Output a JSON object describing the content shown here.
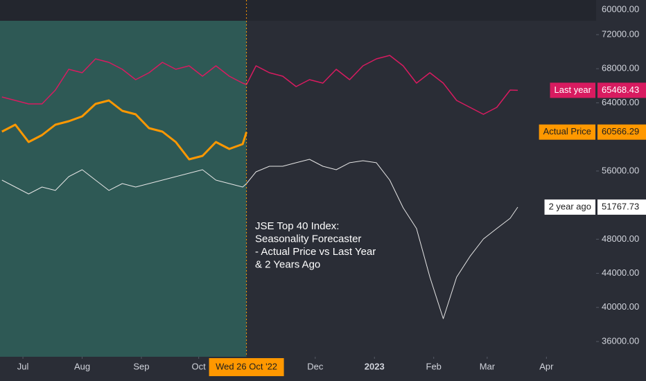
{
  "chart_data": {
    "type": "line",
    "annotation": [
      "JSE Top 40 Index:",
      "Seasonality Forecaster",
      "- Actual Price vs Last Year",
      "& 2 Years Ago"
    ],
    "scale_label": "60000.00",
    "crosshair": {
      "value": "2022-10-26",
      "label": "Wed 26 Oct '22"
    },
    "x": [
      "2022-06-20",
      "2022-06-27",
      "2022-07-04",
      "2022-07-11",
      "2022-07-18",
      "2022-07-25",
      "2022-08-01",
      "2022-08-08",
      "2022-08-15",
      "2022-08-22",
      "2022-08-29",
      "2022-09-05",
      "2022-09-12",
      "2022-09-19",
      "2022-09-26",
      "2022-10-03",
      "2022-10-10",
      "2022-10-17",
      "2022-10-24",
      "2022-10-26",
      "2022-10-31",
      "2022-11-07",
      "2022-11-14",
      "2022-11-21",
      "2022-11-28",
      "2022-12-05",
      "2022-12-12",
      "2022-12-19",
      "2022-12-26",
      "2023-01-02",
      "2023-01-09",
      "2023-01-16",
      "2023-01-23",
      "2023-01-30",
      "2023-02-06",
      "2023-02-13",
      "2023-02-20",
      "2023-02-27",
      "2023-03-06",
      "2023-03-13",
      "2023-03-17"
    ],
    "series": [
      {
        "name": "Last year",
        "color": "#d81b60",
        "width": 1.5,
        "values": [
          64685,
          64278,
          63872,
          63872,
          65497,
          67935,
          67529,
          69154,
          68748,
          67935,
          66716,
          67529,
          68748,
          67935,
          68341,
          67122,
          68341,
          67122,
          66310,
          66148,
          68341,
          67529,
          67122,
          65904,
          66716,
          66310,
          67935,
          66716,
          68341,
          69154,
          69560,
          68341,
          66310,
          67529,
          66310,
          64278,
          63466,
          62653,
          63466,
          65497,
          65468.43
        ]
      },
      {
        "name": "Actual Price",
        "color": "#ff9800",
        "width": 3,
        "values": [
          60620,
          61435,
          59400,
          60215,
          61435,
          61840,
          62410,
          63870,
          64280,
          63060,
          62650,
          61030,
          60620,
          59400,
          57370,
          57780,
          59400,
          58590,
          59160,
          60566.29,
          null,
          null,
          null,
          null,
          null,
          null,
          null,
          null,
          null,
          null,
          null,
          null,
          null,
          null,
          null,
          null,
          null,
          null,
          null,
          null,
          null
        ]
      },
      {
        "name": "2 year ago",
        "color": "#e6e6e6",
        "width": 1,
        "values": [
          54930,
          54120,
          53310,
          54120,
          53720,
          55340,
          56150,
          54930,
          53720,
          54530,
          54120,
          54530,
          54930,
          55340,
          55750,
          56150,
          54930,
          54530,
          54120,
          54530,
          55910,
          56560,
          56560,
          56970,
          57370,
          56560,
          56150,
          56970,
          57210,
          56970,
          54930,
          51690,
          49250,
          43560,
          38680,
          43560,
          45990,
          48030,
          49250,
          50460,
          51767.73
        ]
      }
    ],
    "xlim": [
      "2022-06-19",
      "2023-04-27"
    ],
    "xticks": [
      {
        "value": "2022-07-01",
        "label": "Jul"
      },
      {
        "value": "2022-08-01",
        "label": "Aug"
      },
      {
        "value": "2022-09-01",
        "label": "Sep"
      },
      {
        "value": "2022-10-01",
        "label": "Oct"
      },
      {
        "value": "2022-12-01",
        "label": "Dec"
      },
      {
        "value": "2023-01-01",
        "label": "2023"
      },
      {
        "value": "2023-02-01",
        "label": "Feb"
      },
      {
        "value": "2023-03-01",
        "label": "Mar"
      },
      {
        "value": "2023-04-01",
        "label": "Apr"
      }
    ],
    "ylim": [
      34212,
      76062
    ],
    "yticks": [
      {
        "value": 36000,
        "label": "36000.00"
      },
      {
        "value": 40000,
        "label": "40000.00"
      },
      {
        "value": 44000,
        "label": "44000.00"
      },
      {
        "value": 48000,
        "label": "48000.00"
      },
      {
        "value": 56000,
        "label": "56000.00"
      },
      {
        "value": 64000,
        "label": "64000.00"
      },
      {
        "value": 68000,
        "label": "68000.00"
      },
      {
        "value": 72000,
        "label": "72000.00"
      }
    ]
  }
}
